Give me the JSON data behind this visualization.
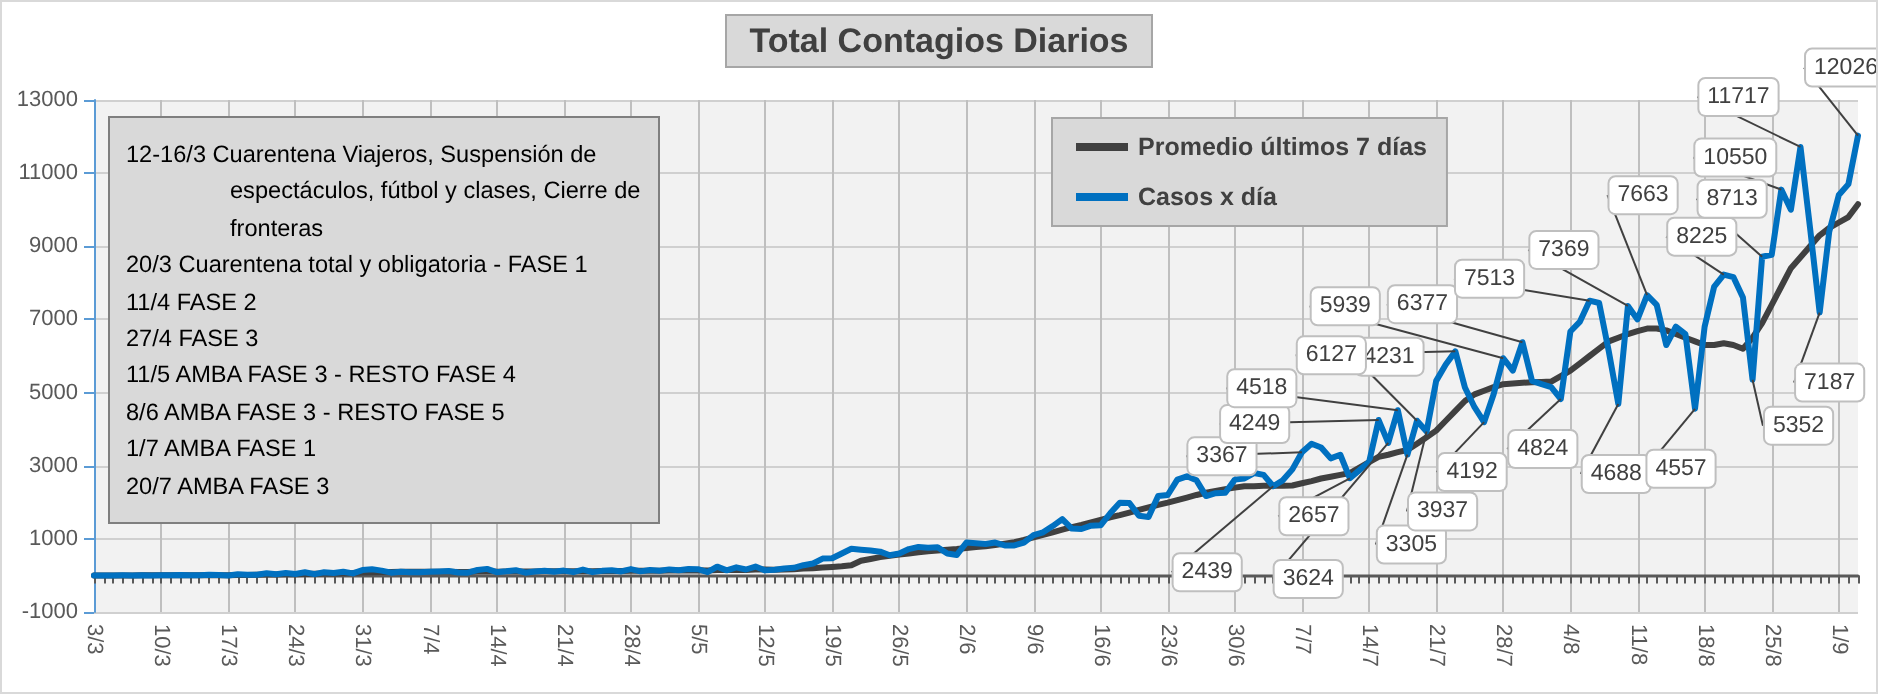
{
  "chart_data": {
    "type": "line",
    "title": "Total Contagios Diarios",
    "categories": [
      "3/3",
      null,
      null,
      null,
      null,
      null,
      null,
      "10/3",
      null,
      null,
      null,
      null,
      null,
      null,
      "17/3",
      null,
      null,
      null,
      null,
      null,
      null,
      "24/3",
      null,
      null,
      null,
      null,
      null,
      null,
      "31/3",
      null,
      null,
      null,
      null,
      null,
      null,
      "7/4",
      null,
      null,
      null,
      null,
      null,
      null,
      "14/4",
      null,
      null,
      null,
      null,
      null,
      null,
      "21/4",
      null,
      null,
      null,
      null,
      null,
      null,
      "28/4",
      null,
      null,
      null,
      null,
      null,
      null,
      "5/5",
      null,
      null,
      null,
      null,
      null,
      null,
      "12/5",
      null,
      null,
      null,
      null,
      null,
      null,
      "19/5",
      null,
      null,
      null,
      null,
      null,
      null,
      "26/5",
      null,
      null,
      null,
      null,
      null,
      null,
      "2/6",
      null,
      null,
      null,
      null,
      null,
      null,
      "9/6",
      null,
      null,
      null,
      null,
      null,
      null,
      "16/6",
      null,
      null,
      null,
      null,
      null,
      null,
      "23/6",
      null,
      null,
      null,
      null,
      null,
      null,
      "30/6",
      null,
      null,
      null,
      null,
      null,
      null,
      "7/7",
      null,
      null,
      null,
      null,
      null,
      null,
      "14/7",
      null,
      null,
      null,
      null,
      null,
      null,
      "21/7",
      null,
      null,
      null,
      null,
      null,
      null,
      "28/7",
      null,
      null,
      null,
      null,
      null,
      null,
      "4/8",
      null,
      null,
      null,
      null,
      null,
      null,
      "11/8",
      null,
      null,
      null,
      null,
      null,
      null,
      "18/8",
      null,
      null,
      null,
      null,
      null,
      null,
      "25/8",
      null,
      null,
      null,
      null,
      null,
      null,
      "1/9",
      null,
      null
    ],
    "series": [
      {
        "name": "Promedio últimos 7 días",
        "color": "#404040",
        "values": [
          0,
          0,
          0,
          1,
          1,
          2,
          2,
          2,
          2,
          4,
          4,
          4,
          7,
          8,
          8,
          12,
          14,
          16,
          22,
          24,
          30,
          33,
          42,
          45,
          52,
          52,
          62,
          64,
          78,
          90,
          95,
          96,
          98,
          99,
          100,
          103,
          99,
          100,
          97,
          95,
          105,
          112,
          104,
          108,
          109,
          109,
          110,
          117,
          112,
          115,
          112,
          116,
          115,
          119,
          124,
          121,
          129,
          127,
          128,
          131,
          134,
          137,
          138,
          142,
          136,
          151,
          147,
          155,
          150,
          159,
          161,
          155,
          162,
          169,
          186,
          198,
          214,
          233,
          249,
          276,
          400,
          450,
          500,
          540,
          570,
          600,
          630,
          660,
          680,
          700,
          720,
          750,
          780,
          800,
          830,
          870,
          910,
          970,
          1040,
          1110,
          1180,
          1250,
          1320,
          1380,
          1450,
          1520,
          1590,
          1650,
          1720,
          1790,
          1860,
          1930,
          1990,
          2060,
          2130,
          2200,
          2260,
          2310,
          2360,
          2400,
          2440,
          2440,
          2450,
          2450,
          2450,
          2460,
          2520,
          2580,
          2650,
          2700,
          2750,
          2800,
          2950,
          3100,
          3240,
          3300,
          3370,
          3430,
          3600,
          3780,
          3960,
          4230,
          4500,
          4770,
          4950,
          5050,
          5150,
          5230,
          5250,
          5270,
          5280,
          5290,
          5300,
          5450,
          5600,
          5800,
          6000,
          6200,
          6400,
          6500,
          6600,
          6680,
          6750,
          6750,
          6700,
          6600,
          6500,
          6400,
          6300,
          6300,
          6350,
          6300,
          6200,
          6500,
          6900,
          7400,
          7900,
          8400,
          8700,
          9000,
          9300,
          9500,
          9650,
          9800,
          10150
        ]
      },
      {
        "name": "Casos x día",
        "color": "#0070c0",
        "values": [
          1,
          0,
          1,
          2,
          1,
          4,
          0,
          5,
          3,
          12,
          3,
          3,
          21,
          11,
          0,
          31,
          18,
          19,
          58,
          30,
          64,
          41,
          86,
          35,
          85,
          65,
          101,
          55,
          146,
          167,
          132,
          75,
          103,
          90,
          88,
          98,
          108,
          120,
          82,
          76,
          148,
          179,
          90,
          112,
          144,
          74,
          105,
          130,
          103,
          132,
          90,
          159,
          90,
          125,
          143,
          110,
          173,
          111,
          148,
          129,
          165,
          143,
          175,
          170,
          90,
          240,
          139,
          222,
          162,
          243,
          138,
          156,
          190,
          208,
          280,
          326,
          460,
          470,
          600,
          730,
          705,
          680,
          650,
          550,
          600,
          720,
          780,
          760,
          770,
          600,
          560,
          900,
          880,
          860,
          900,
          820,
          820,
          900,
          1100,
          1180,
          1350,
          1540,
          1280,
          1270,
          1360,
          1370,
          1700,
          1990,
          1980,
          1630,
          1600,
          2170,
          2200,
          2620,
          2710,
          2600,
          2170,
          2250,
          2260,
          2620,
          2650,
          2800,
          2750,
          2439,
          2600,
          2900,
          3367,
          3600,
          3500,
          3200,
          3300,
          2657,
          2880,
          3100,
          4249,
          3624,
          4518,
          3305,
          4231,
          3937,
          5320,
          5770,
          6127,
          5140,
          4600,
          4192,
          4960,
          5939,
          5600,
          6377,
          5320,
          5230,
          5150,
          4824,
          6670,
          6940,
          7513,
          7450,
          6134,
          4688,
          7369,
          7000,
          7663,
          7400,
          6300,
          6800,
          6600,
          4557,
          6800,
          7900,
          8225,
          8159,
          7600,
          5352,
          8713,
          8770,
          10550,
          10000,
          11717,
          9500,
          7187,
          9400,
          10400,
          10700,
          12026
        ],
        "value_labels": [
          null,
          null,
          null,
          null,
          null,
          null,
          null,
          null,
          null,
          null,
          null,
          null,
          null,
          null,
          null,
          null,
          null,
          null,
          null,
          null,
          null,
          null,
          null,
          null,
          null,
          null,
          null,
          null,
          null,
          null,
          null,
          null,
          null,
          null,
          null,
          null,
          null,
          null,
          null,
          null,
          null,
          null,
          null,
          null,
          null,
          null,
          null,
          null,
          null,
          null,
          null,
          null,
          null,
          null,
          null,
          null,
          null,
          null,
          null,
          null,
          null,
          null,
          null,
          null,
          null,
          null,
          null,
          null,
          null,
          null,
          null,
          null,
          null,
          null,
          null,
          null,
          null,
          null,
          null,
          null,
          null,
          null,
          null,
          null,
          null,
          null,
          null,
          null,
          null,
          null,
          null,
          null,
          null,
          null,
          null,
          null,
          null,
          null,
          null,
          null,
          null,
          null,
          null,
          null,
          null,
          null,
          null,
          null,
          null,
          null,
          null,
          null,
          null,
          null,
          null,
          null,
          null,
          null,
          null,
          null,
          null,
          null,
          null,
          "2439",
          null,
          null,
          "3367",
          null,
          null,
          null,
          null,
          "2657",
          null,
          null,
          "4249",
          "3624",
          "4518",
          "3305",
          "4231",
          "3937",
          null,
          null,
          "6127",
          null,
          null,
          "4192",
          null,
          "5939",
          null,
          "6377",
          null,
          null,
          null,
          "4824",
          null,
          null,
          "7513",
          null,
          null,
          "4688",
          "7369",
          null,
          "7663",
          null,
          null,
          null,
          null,
          "4557",
          null,
          null,
          "8225",
          null,
          null,
          "5352",
          "8713",
          null,
          "10550",
          null,
          "11717",
          null,
          "7187",
          null,
          null,
          null,
          "12026"
        ]
      }
    ],
    "ylim": [
      -1000,
      13000
    ],
    "yticks": [
      -1000,
      1000,
      3000,
      5000,
      7000,
      9000,
      11000,
      13000
    ],
    "grid": true,
    "legend": "top",
    "annotations": [
      "12-16/3 Cuarentena Viajeros, Suspensión de espectáculos, fútbol y clases, Cierre de fronteras",
      "20/3 Cuarentena total y obligatoria - FASE 1",
      "11/4 FASE 2",
      "27/4 FASE 3",
      "11/5 AMBA FASE 3 - RESTO FASE 4",
      "8/6 AMBA FASE 3 - RESTO FASE 5",
      "1/7 AMBA FASE 1",
      "20/7 AMBA FASE 3"
    ]
  }
}
